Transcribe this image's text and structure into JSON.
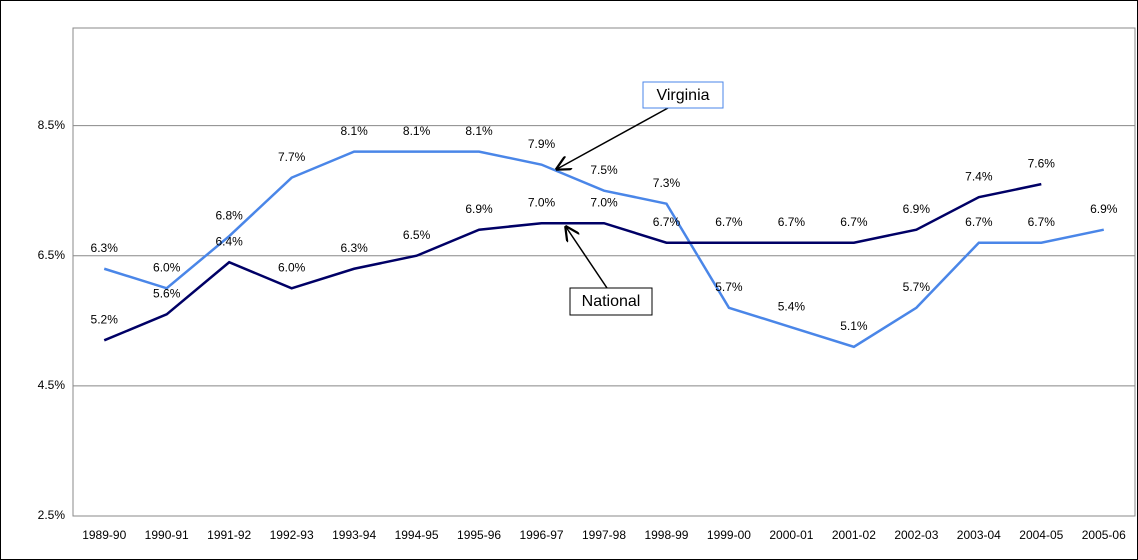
{
  "chart_data": {
    "type": "line",
    "categories": [
      "1989-90",
      "1990-91",
      "1991-92",
      "1992-93",
      "1993-94",
      "1994-95",
      "1995-96",
      "1996-97",
      "1997-98",
      "1998-99",
      "1999-00",
      "2000-01",
      "2001-02",
      "2002-03",
      "2003-04",
      "2004-05",
      "2005-06"
    ],
    "series": [
      {
        "name": "Virginia",
        "color": "#4a86e8",
        "values": [
          6.3,
          6.0,
          6.8,
          7.7,
          8.1,
          8.1,
          8.1,
          7.9,
          7.5,
          7.3,
          5.7,
          5.4,
          5.1,
          5.7,
          6.7,
          6.7,
          6.9
        ],
        "value_labels": [
          "6.3%",
          "6.0%",
          "6.8%",
          "7.7%",
          "8.1%",
          "8.1%",
          "8.1%",
          "7.9%",
          "7.5%",
          "7.3%",
          "5.7%",
          "5.4%",
          "5.1%",
          "5.7%",
          "6.7%",
          "6.7%",
          "6.9%"
        ]
      },
      {
        "name": "National",
        "color": "#000066",
        "values": [
          5.2,
          5.6,
          6.4,
          6.0,
          6.3,
          6.5,
          6.9,
          7.0,
          7.0,
          6.7,
          6.7,
          6.7,
          6.7,
          6.9,
          7.4,
          7.6,
          null
        ],
        "value_labels": [
          "5.2%",
          "5.6%",
          "6.4%",
          "6.0%",
          "6.3%",
          "6.5%",
          "6.9%",
          "7.0%",
          "7.0%",
          "6.7%",
          "6.7%",
          "6.7%",
          "6.7%",
          "6.9%",
          "7.4%",
          "7.6%",
          null
        ]
      }
    ],
    "ylim": [
      2.5,
      10.0
    ],
    "yticks": [
      {
        "value": 2.5,
        "label": "2.5%"
      },
      {
        "value": 4.5,
        "label": "4.5%"
      },
      {
        "value": 6.5,
        "label": "6.5%"
      },
      {
        "value": 8.5,
        "label": "8.5%"
      }
    ],
    "grid": true
  }
}
